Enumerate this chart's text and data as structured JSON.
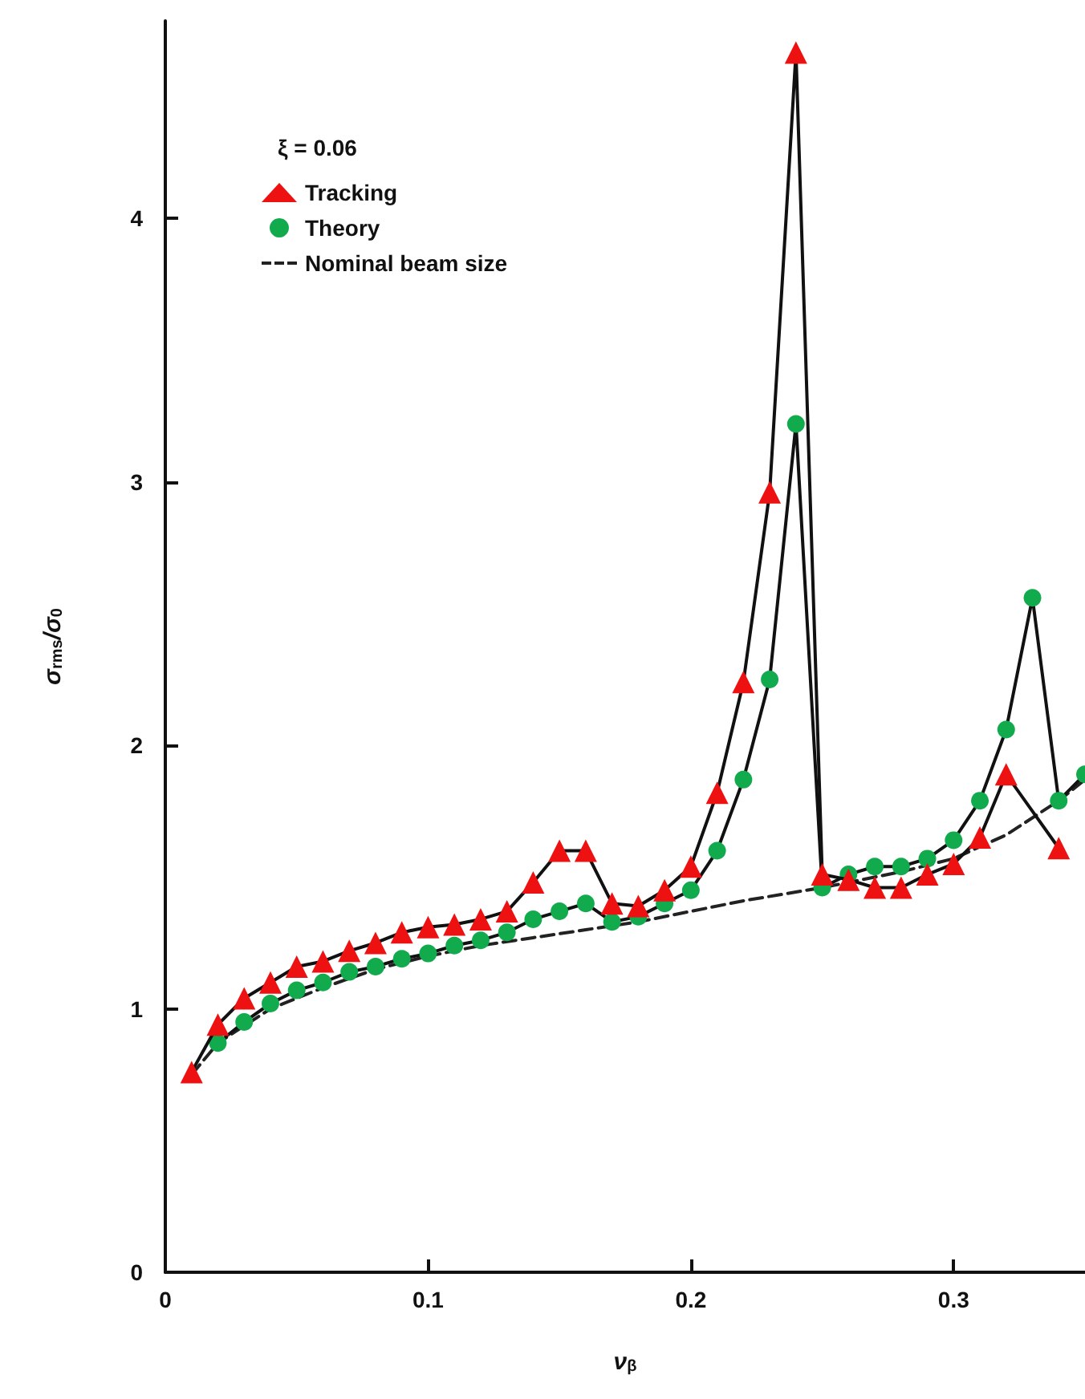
{
  "chart_data": {
    "type": "line",
    "xlabel": "ν$_{β}$",
    "ylabel": "σ$_{rms}$/σ$_{0}$",
    "legend_title": "ξ = 0.06",
    "legend": "top left",
    "xlim": [
      0,
      0.35
    ],
    "xticks": [
      0,
      0.1,
      0.2,
      0.3
    ],
    "ylim": [
      0,
      4.75
    ],
    "yticks": [
      0,
      1,
      2,
      3,
      4
    ],
    "grid": false,
    "series": [
      {
        "name": "Tracking",
        "color": "#ee1111",
        "marker": "triangle",
        "line_style": "solid",
        "x": [
          0.01,
          0.02,
          0.03,
          0.04,
          0.05,
          0.06,
          0.07,
          0.08,
          0.09,
          0.1,
          0.11,
          0.12,
          0.13,
          0.14,
          0.15,
          0.16,
          0.17,
          0.18,
          0.19,
          0.2,
          0.21,
          0.22,
          0.23,
          0.24,
          0.25,
          0.26,
          0.27,
          0.28,
          0.29,
          0.3,
          0.31,
          0.32,
          0.34
        ],
        "values": [
          0.76,
          0.94,
          1.04,
          1.1,
          1.16,
          1.18,
          1.22,
          1.25,
          1.29,
          1.31,
          1.32,
          1.34,
          1.37,
          1.48,
          1.6,
          1.6,
          1.4,
          1.39,
          1.45,
          1.54,
          1.82,
          2.24,
          2.96,
          4.63,
          1.51,
          1.49,
          1.46,
          1.46,
          1.51,
          1.55,
          1.65,
          1.89,
          1.61
        ]
      },
      {
        "name": "Theory",
        "color": "#11aa4c",
        "marker": "circle",
        "line_style": "solid",
        "x": [
          0.02,
          0.03,
          0.04,
          0.05,
          0.06,
          0.07,
          0.08,
          0.09,
          0.1,
          0.11,
          0.12,
          0.13,
          0.14,
          0.15,
          0.16,
          0.17,
          0.18,
          0.19,
          0.2,
          0.21,
          0.22,
          0.23,
          0.24,
          0.25,
          0.26,
          0.27,
          0.28,
          0.29,
          0.3,
          0.31,
          0.32,
          0.33,
          0.34,
          0.35
        ],
        "values": [
          0.87,
          0.95,
          1.02,
          1.07,
          1.1,
          1.14,
          1.16,
          1.19,
          1.21,
          1.24,
          1.26,
          1.29,
          1.34,
          1.37,
          1.4,
          1.33,
          1.35,
          1.4,
          1.45,
          1.6,
          1.87,
          2.25,
          3.22,
          1.46,
          1.51,
          1.54,
          1.54,
          1.57,
          1.64,
          1.79,
          2.06,
          2.56,
          1.79,
          1.89
        ]
      },
      {
        "name": "Nominal beam size",
        "color": "#222222",
        "marker": "none",
        "line_style": "dashed",
        "x": [
          0.01,
          0.02,
          0.04,
          0.06,
          0.08,
          0.1,
          0.12,
          0.14,
          0.16,
          0.18,
          0.2,
          0.22,
          0.25,
          0.28,
          0.3,
          0.32,
          0.34,
          0.35
        ],
        "values": [
          0.75,
          0.87,
          1.0,
          1.08,
          1.15,
          1.2,
          1.24,
          1.27,
          1.3,
          1.33,
          1.37,
          1.41,
          1.46,
          1.52,
          1.57,
          1.66,
          1.79,
          1.87
        ]
      }
    ]
  }
}
